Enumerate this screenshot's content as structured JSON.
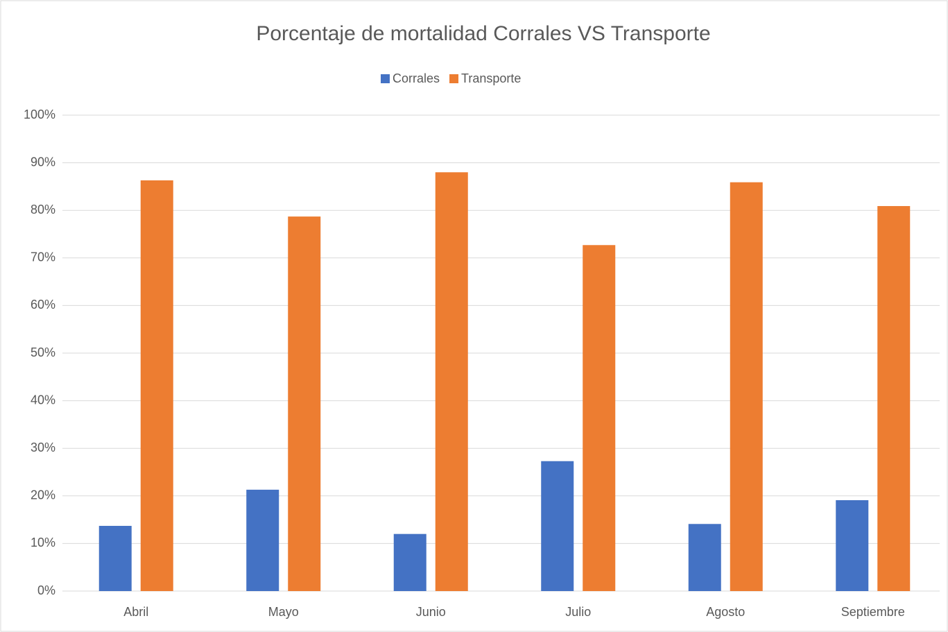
{
  "chart_data": {
    "type": "bar",
    "title": "Porcentaje de mortalidad Corrales VS Transporte",
    "categories": [
      "Abril",
      "Mayo",
      "Junio",
      "Julio",
      "Agosto",
      "Septiembre"
    ],
    "series": [
      {
        "name": "Corrales",
        "color": "#4472c4",
        "values": [
          13.7,
          21.3,
          12.0,
          27.3,
          14.1,
          19.1
        ]
      },
      {
        "name": "Transporte",
        "color": "#ed7d31",
        "values": [
          86.3,
          78.7,
          88.0,
          72.7,
          85.9,
          80.9
        ]
      }
    ],
    "ylim": [
      0,
      100
    ],
    "yticks": [
      {
        "value": 0,
        "label": "0%"
      },
      {
        "value": 10,
        "label": "10%"
      },
      {
        "value": 20,
        "label": "20%"
      },
      {
        "value": 30,
        "label": "30%"
      },
      {
        "value": 40,
        "label": "40%"
      },
      {
        "value": 50,
        "label": "50%"
      },
      {
        "value": 60,
        "label": "60%"
      },
      {
        "value": 70,
        "label": "70%"
      },
      {
        "value": 80,
        "label": "80%"
      },
      {
        "value": 90,
        "label": "90%"
      },
      {
        "value": 100,
        "label": "100%"
      }
    ],
    "grid": true,
    "legend": "top"
  }
}
